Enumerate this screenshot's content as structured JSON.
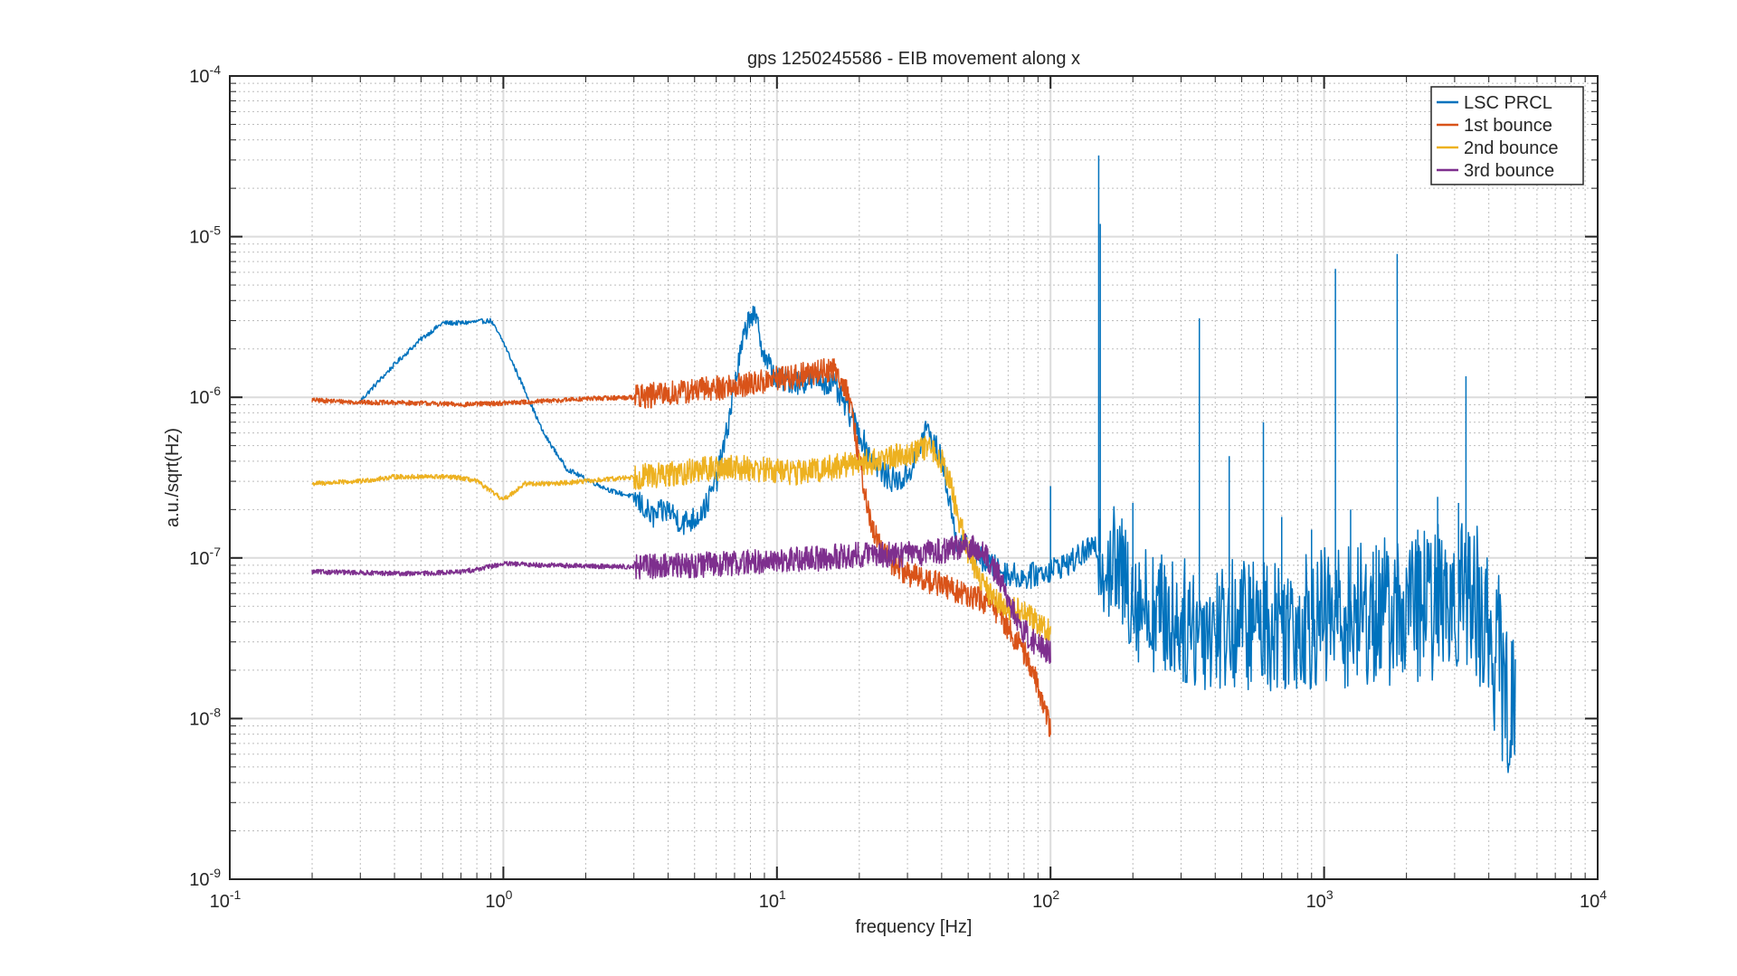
{
  "chart_data": {
    "type": "line",
    "title": "gps 1250245586 - EIB movement along x",
    "xlabel": "frequency [Hz]",
    "ylabel": "a.u./sqrt(Hz)",
    "xscale": "log",
    "yscale": "log",
    "xlim": [
      0.1,
      10000
    ],
    "ylim": [
      1e-09,
      0.0001
    ],
    "grid": true,
    "minor_grid": true,
    "legend_position": "top-right",
    "x_ticks": [
      {
        "base": "10",
        "exp": "-1"
      },
      {
        "base": "10",
        "exp": "0"
      },
      {
        "base": "10",
        "exp": "1"
      },
      {
        "base": "10",
        "exp": "2"
      },
      {
        "base": "10",
        "exp": "3"
      },
      {
        "base": "10",
        "exp": "4"
      }
    ],
    "y_ticks": [
      {
        "base": "10",
        "exp": "-9"
      },
      {
        "base": "10",
        "exp": "-8"
      },
      {
        "base": "10",
        "exp": "-7"
      },
      {
        "base": "10",
        "exp": "-6"
      },
      {
        "base": "10",
        "exp": "-5"
      },
      {
        "base": "10",
        "exp": "-4"
      }
    ],
    "series": [
      {
        "name": "LSC PRCL",
        "color": "#0072bd",
        "noise_band": [
          [
            150,
            0.3
          ],
          [
            300,
            0.32
          ],
          [
            2500,
            0.4
          ],
          [
            3300,
            0.4
          ],
          [
            4000,
            0.45
          ],
          [
            5000,
            0.45
          ]
        ],
        "points": [
          [
            0.3,
            9.5e-07
          ],
          [
            0.4,
            1.6e-06
          ],
          [
            0.5,
            2.3e-06
          ],
          [
            0.6,
            2.9e-06
          ],
          [
            0.7,
            2.9e-06
          ],
          [
            0.9,
            3e-06
          ],
          [
            1.0,
            2.2e-06
          ],
          [
            1.2,
            1.1e-06
          ],
          [
            1.4,
            6e-07
          ],
          [
            1.7,
            3.6e-07
          ],
          [
            2.0,
            3.1e-07
          ],
          [
            2.5,
            2.6e-07
          ],
          [
            3.0,
            2.4e-07
          ],
          [
            3.5,
            1.8e-07
          ],
          [
            4.0,
            2e-07
          ],
          [
            4.5,
            1.65e-07
          ],
          [
            5.0,
            1.75e-07
          ],
          [
            5.5,
            2.1e-07
          ],
          [
            6.0,
            3e-07
          ],
          [
            6.5,
            5.5e-07
          ],
          [
            7.0,
            1.2e-06
          ],
          [
            7.5,
            2.2e-06
          ],
          [
            8.0,
            3.4e-06
          ],
          [
            8.5,
            2.8e-06
          ],
          [
            9.0,
            1.8e-06
          ],
          [
            10,
            1.3e-06
          ],
          [
            12,
            1.25e-06
          ],
          [
            14,
            1.3e-06
          ],
          [
            16,
            1.2e-06
          ],
          [
            18,
            8.5e-07
          ],
          [
            20,
            6e-07
          ],
          [
            22,
            4.3e-07
          ],
          [
            25,
            3.2e-07
          ],
          [
            28,
            3e-07
          ],
          [
            30,
            3.3e-07
          ],
          [
            33,
            4.5e-07
          ],
          [
            35,
            6.5e-07
          ],
          [
            38,
            5e-07
          ],
          [
            40,
            4e-07
          ],
          [
            43,
            2.2e-07
          ],
          [
            45,
            1.3e-07
          ],
          [
            50,
            1.15e-07
          ],
          [
            55,
            1e-07
          ],
          [
            60,
            9e-08
          ],
          [
            70,
            8e-08
          ],
          [
            80,
            7.5e-08
          ],
          [
            90,
            8e-08
          ],
          [
            100,
            8.5e-08
          ],
          [
            120,
            9.5e-08
          ],
          [
            140,
            1.15e-07
          ],
          [
            150,
            1.1e-07
          ],
          [
            170,
            9e-08
          ],
          [
            190,
            7e-08
          ],
          [
            210,
            5.5e-08
          ],
          [
            250,
            4.5e-08
          ],
          [
            300,
            4e-08
          ],
          [
            350,
            3.8e-08
          ],
          [
            400,
            3.8e-08
          ],
          [
            500,
            3.9e-08
          ],
          [
            700,
            4e-08
          ],
          [
            1000,
            4.2e-08
          ],
          [
            1500,
            4.5e-08
          ],
          [
            2000,
            4.8e-08
          ],
          [
            2500,
            5.2e-08
          ],
          [
            3000,
            6e-08
          ],
          [
            3300,
            6e-08
          ],
          [
            3600,
            5.5e-08
          ],
          [
            4000,
            3.5e-08
          ],
          [
            4300,
            2.5e-08
          ],
          [
            4600,
            1.5e-08
          ],
          [
            5000,
            8.5e-09
          ]
        ],
        "peaks": [
          [
            100,
            2.8e-07
          ],
          [
            150,
            3.2e-05
          ],
          [
            152,
            1.2e-05
          ],
          [
            200,
            2.2e-07
          ],
          [
            350,
            3.1e-06
          ],
          [
            450,
            4.3e-07
          ],
          [
            600,
            7e-07
          ],
          [
            700,
            1.8e-07
          ],
          [
            900,
            1.5e-07
          ],
          [
            1100,
            6.3e-06
          ],
          [
            1250,
            2e-07
          ],
          [
            1550,
            1.2e-07
          ],
          [
            1850,
            7.8e-06
          ],
          [
            2200,
            1.5e-07
          ],
          [
            2600,
            2.4e-07
          ],
          [
            3100,
            2.2e-07
          ],
          [
            3300,
            1.35e-06
          ]
        ]
      },
      {
        "name": "1st bounce",
        "color": "#d95319",
        "points": [
          [
            0.2,
            9.6e-07
          ],
          [
            0.3,
            9.3e-07
          ],
          [
            0.5,
            9.2e-07
          ],
          [
            0.7,
            9e-07
          ],
          [
            1.0,
            9.2e-07
          ],
          [
            1.5,
            9.5e-07
          ],
          [
            2.0,
            9.8e-07
          ],
          [
            3.0,
            1e-06
          ],
          [
            4.0,
            1.05e-06
          ],
          [
            5.0,
            1.1e-06
          ],
          [
            6.0,
            1.15e-06
          ],
          [
            8.0,
            1.2e-06
          ],
          [
            10,
            1.3e-06
          ],
          [
            12,
            1.35e-06
          ],
          [
            14,
            1.45e-06
          ],
          [
            16,
            1.5e-06
          ],
          [
            17,
            1.35e-06
          ],
          [
            18,
            1.1e-06
          ],
          [
            19,
            7e-07
          ],
          [
            20,
            4e-07
          ],
          [
            21,
            2.6e-07
          ],
          [
            22,
            1.6e-07
          ],
          [
            24,
            1.15e-07
          ],
          [
            26,
            9.5e-08
          ],
          [
            30,
            8e-08
          ],
          [
            35,
            7.3e-08
          ],
          [
            40,
            6.8e-08
          ],
          [
            45,
            6.2e-08
          ],
          [
            50,
            5.8e-08
          ],
          [
            55,
            5.5e-08
          ],
          [
            60,
            5.2e-08
          ],
          [
            65,
            4.5e-08
          ],
          [
            70,
            3.7e-08
          ],
          [
            80,
            2.6e-08
          ],
          [
            90,
            1.6e-08
          ],
          [
            95,
            1.2e-08
          ],
          [
            100,
            8.5e-09
          ]
        ]
      },
      {
        "name": "2nd bounce",
        "color": "#edb120",
        "points": [
          [
            0.2,
            2.9e-07
          ],
          [
            0.3,
            3e-07
          ],
          [
            0.4,
            3.2e-07
          ],
          [
            0.5,
            3.2e-07
          ],
          [
            0.6,
            3.2e-07
          ],
          [
            0.7,
            3.15e-07
          ],
          [
            0.8,
            3e-07
          ],
          [
            0.9,
            2.6e-07
          ],
          [
            1.0,
            2.3e-07
          ],
          [
            1.2,
            2.9e-07
          ],
          [
            1.5,
            2.9e-07
          ],
          [
            2.0,
            3e-07
          ],
          [
            2.5,
            3.1e-07
          ],
          [
            3.0,
            3.2e-07
          ],
          [
            4.0,
            3.3e-07
          ],
          [
            5.0,
            3.5e-07
          ],
          [
            6.0,
            3.6e-07
          ],
          [
            7.0,
            3.7e-07
          ],
          [
            8.0,
            3.6e-07
          ],
          [
            10,
            3.5e-07
          ],
          [
            12,
            3.4e-07
          ],
          [
            15,
            3.6e-07
          ],
          [
            18,
            3.8e-07
          ],
          [
            20,
            4e-07
          ],
          [
            22,
            3.9e-07
          ],
          [
            25,
            4.2e-07
          ],
          [
            30,
            4.5e-07
          ],
          [
            35,
            4.8e-07
          ],
          [
            38,
            4.6e-07
          ],
          [
            40,
            4e-07
          ],
          [
            43,
            3e-07
          ],
          [
            45,
            2e-07
          ],
          [
            48,
            1.4e-07
          ],
          [
            50,
            1.1e-07
          ],
          [
            55,
            7.5e-08
          ],
          [
            60,
            6e-08
          ],
          [
            65,
            5.3e-08
          ],
          [
            70,
            5e-08
          ],
          [
            80,
            4.5e-08
          ],
          [
            90,
            4e-08
          ],
          [
            100,
            3.5e-08
          ]
        ]
      },
      {
        "name": "3rd bounce",
        "color": "#7e2f8e",
        "points": [
          [
            0.2,
            8.2e-08
          ],
          [
            0.3,
            8.1e-08
          ],
          [
            0.4,
            8e-08
          ],
          [
            0.5,
            8e-08
          ],
          [
            0.7,
            8.2e-08
          ],
          [
            0.8,
            8.5e-08
          ],
          [
            1.0,
            9.2e-08
          ],
          [
            1.5,
            9e-08
          ],
          [
            2.0,
            8.9e-08
          ],
          [
            3.0,
            8.8e-08
          ],
          [
            4.0,
            8.9e-08
          ],
          [
            5.0,
            9e-08
          ],
          [
            7.0,
            9.3e-08
          ],
          [
            10,
            9.6e-08
          ],
          [
            15,
            1e-07
          ],
          [
            20,
            1.05e-07
          ],
          [
            25,
            1.05e-07
          ],
          [
            30,
            1.05e-07
          ],
          [
            40,
            1.1e-07
          ],
          [
            45,
            1.15e-07
          ],
          [
            50,
            1.2e-07
          ],
          [
            55,
            1.1e-07
          ],
          [
            60,
            9.5e-08
          ],
          [
            65,
            7.5e-08
          ],
          [
            70,
            5.5e-08
          ],
          [
            75,
            4.3e-08
          ],
          [
            80,
            3.5e-08
          ],
          [
            90,
            2.8e-08
          ],
          [
            100,
            2.6e-08
          ]
        ]
      }
    ]
  }
}
